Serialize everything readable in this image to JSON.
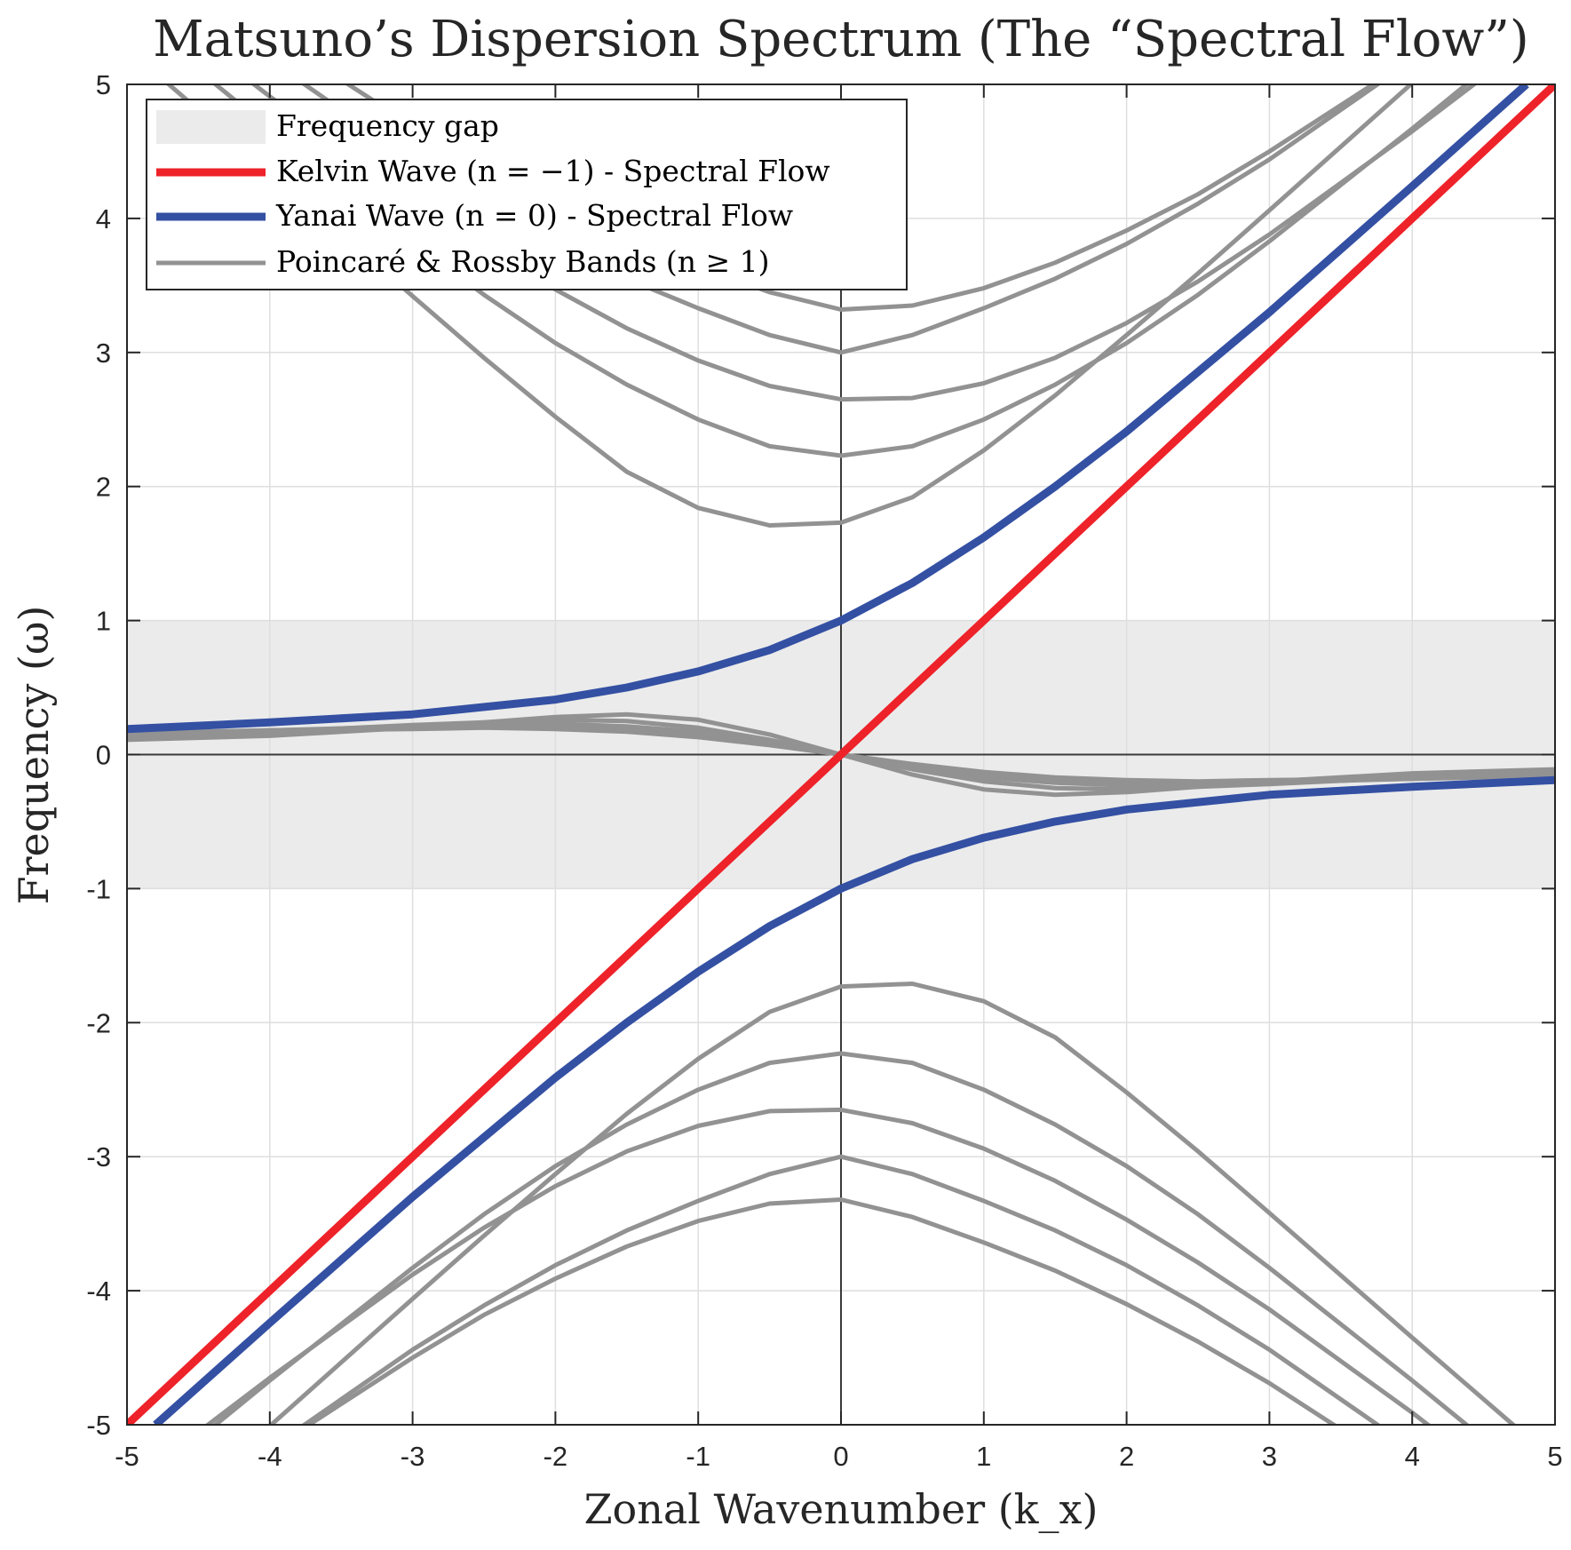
{
  "chart_data": {
    "type": "line",
    "title": "Matsuno’s Dispersion Spectrum (The “Spectral Flow”)",
    "xlabel": "Zonal Wavenumber (k_x)",
    "ylabel": "Frequency (ω)",
    "xlim": [
      -5,
      5
    ],
    "ylim": [
      -5,
      5
    ],
    "xticks": [
      "-5",
      "-4",
      "-3",
      "-2",
      "-1",
      "0",
      "1",
      "2",
      "3",
      "4",
      "5"
    ],
    "yticks": [
      "-5",
      "-4",
      "-3",
      "-2",
      "-1",
      "0",
      "1",
      "2",
      "3",
      "4",
      "5"
    ],
    "grid": true,
    "legend_position": "top-left",
    "gap_band": {
      "name": "Frequency gap",
      "y_range": [
        -1,
        1
      ],
      "color": "#ebebeb"
    },
    "series": [
      {
        "name": "Kelvin Wave (n = −1) - Spectral Flow",
        "color": "#ee2229",
        "x": [
          -5,
          -4,
          -3,
          -2,
          -1,
          0,
          1,
          2,
          3,
          4,
          5
        ],
        "y": [
          -5,
          -4,
          -3,
          -2,
          -1,
          0,
          1,
          2,
          3,
          4,
          5
        ]
      },
      {
        "name": "Yanai Wave (n = 0) - Spectral Flow",
        "color": "#3450a3",
        "branches": [
          {
            "x": [
              -5,
              -4,
              -3,
              -2,
              -1.5,
              -1,
              -0.5,
              0,
              0.5,
              1,
              1.5,
              2,
              3,
              4,
              4.8
            ],
            "y": [
              0.19,
              0.24,
              0.3,
              0.41,
              0.5,
              0.62,
              0.78,
              1.0,
              1.28,
              1.62,
              2.0,
              2.41,
              3.3,
              4.24,
              5.0
            ]
          },
          {
            "x": [
              -4.8,
              -4,
              -3,
              -2,
              -1.5,
              -1,
              -0.5,
              0,
              0.5,
              1,
              1.5,
              2,
              3,
              4,
              5
            ],
            "y": [
              -5.0,
              -4.24,
              -3.3,
              -2.41,
              -2.0,
              -1.62,
              -1.28,
              -1.0,
              -0.78,
              -0.62,
              -0.5,
              -0.41,
              -0.3,
              -0.24,
              -0.19
            ]
          }
        ]
      },
      {
        "name": "Poincaré & Rossby Bands (n ≥ 1)",
        "color": "#929292",
        "x": [
          -5,
          -4,
          -3,
          -2.5,
          -2,
          -1.5,
          -1,
          -0.5,
          0,
          0.5,
          1,
          1.5,
          2,
          2.5,
          3,
          4,
          5
        ],
        "bands": [
          {
            "n": 1,
            "poincare_upper": [
              5.27,
              4.35,
              3.42,
              2.96,
              2.52,
              2.11,
              1.84,
              1.71,
              1.73,
              1.92,
              2.27,
              2.68,
              3.13,
              3.59,
              4.06,
              5.01,
              5.98
            ],
            "poincare_lower": [
              -5.98,
              -5.01,
              -4.06,
              -3.59,
              -3.13,
              -2.68,
              -2.27,
              -1.92,
              -1.73,
              -1.71,
              -1.84,
              -2.11,
              -2.52,
              -2.96,
              -3.42,
              -4.35,
              -5.27
            ],
            "rossby": [
              0.11,
              0.14,
              0.2,
              0.24,
              0.28,
              0.3,
              0.26,
              0.15,
              0.0,
              -0.15,
              -0.26,
              -0.3,
              -0.28,
              -0.24,
              -0.2,
              -0.14,
              -0.11
            ]
          },
          {
            "n": 2,
            "poincare_upper": [
              5.54,
              4.67,
              3.83,
              3.43,
              3.07,
              2.76,
              2.5,
              2.3,
              2.23,
              2.3,
              2.5,
              2.76,
              3.07,
              3.43,
              3.83,
              4.67,
              5.54
            ],
            "poincare_lower": [
              -5.54,
              -4.67,
              -3.83,
              -3.43,
              -3.07,
              -2.76,
              -2.5,
              -2.3,
              -2.23,
              -2.3,
              -2.5,
              -2.76,
              -3.07,
              -3.43,
              -3.83,
              -4.67,
              -5.54
            ],
            "rossby": [
              0.14,
              0.17,
              0.22,
              0.24,
              0.26,
              0.25,
              0.2,
              0.11,
              0.0,
              -0.11,
              -0.2,
              -0.25,
              -0.26,
              -0.24,
              -0.22,
              -0.17,
              -0.14
            ]
          },
          {
            "n": 3,
            "poincare_upper": [
              5.73,
              4.91,
              4.14,
              3.79,
              3.47,
              3.18,
              2.94,
              2.75,
              2.65,
              2.66,
              2.77,
              2.96,
              3.22,
              3.53,
              3.88,
              4.65,
              5.46
            ],
            "poincare_lower": [
              -5.46,
              -4.65,
              -3.88,
              -3.53,
              -3.22,
              -2.96,
              -2.77,
              -2.66,
              -2.65,
              -2.75,
              -2.94,
              -3.18,
              -3.47,
              -3.79,
              -4.14,
              -4.91,
              -5.73
            ],
            "rossby": [
              0.15,
              0.18,
              0.21,
              0.22,
              0.23,
              0.21,
              0.17,
              0.09,
              0.0,
              -0.09,
              -0.17,
              -0.21,
              -0.23,
              -0.22,
              -0.21,
              -0.18,
              -0.15
            ]
          },
          {
            "n": 4,
            "poincare_upper": [
              5.97,
              5.18,
              4.44,
              4.11,
              3.81,
              3.55,
              3.33,
              3.13,
              3.0,
              3.13,
              3.33,
              3.55,
              3.81,
              4.11,
              4.44,
              5.18,
              5.97
            ],
            "poincare_lower": [
              -5.97,
              -5.18,
              -4.44,
              -4.11,
              -3.81,
              -3.55,
              -3.33,
              -3.13,
              -3.0,
              -3.13,
              -3.33,
              -3.55,
              -3.81,
              -4.11,
              -4.44,
              -5.18,
              -5.97
            ],
            "rossby": [
              0.16,
              0.18,
              0.2,
              0.21,
              0.21,
              0.19,
              0.15,
              0.08,
              0.0,
              -0.08,
              -0.15,
              -0.19,
              -0.21,
              -0.21,
              -0.2,
              -0.18,
              -0.16
            ]
          },
          {
            "n": 5,
            "poincare_upper": [
              6.15,
              5.38,
              4.69,
              4.38,
              4.1,
              3.85,
              3.64,
              3.45,
              3.32,
              3.35,
              3.48,
              3.67,
              3.91,
              4.18,
              4.5,
              5.19,
              5.94
            ],
            "poincare_lower": [
              -5.94,
              -5.19,
              -4.5,
              -4.18,
              -3.91,
              -3.67,
              -3.48,
              -3.35,
              -3.32,
              -3.45,
              -3.64,
              -3.85,
              -4.1,
              -4.38,
              -4.69,
              -5.38,
              -6.15
            ],
            "rossby": [
              0.16,
              0.18,
              0.19,
              0.2,
              0.19,
              0.17,
              0.13,
              0.07,
              0.0,
              -0.07,
              -0.13,
              -0.17,
              -0.19,
              -0.2,
              -0.19,
              -0.18,
              -0.16
            ]
          }
        ]
      }
    ],
    "legend": [
      {
        "label": "Frequency gap",
        "kind": "patch"
      },
      {
        "label": "Kelvin Wave (n = −1) - Spectral Flow",
        "kind": "line"
      },
      {
        "label": "Yanai Wave (n = 0) - Spectral Flow",
        "kind": "line"
      },
      {
        "label": "Poincaré & Rossby Bands (n ≥ 1)",
        "kind": "line"
      }
    ]
  }
}
